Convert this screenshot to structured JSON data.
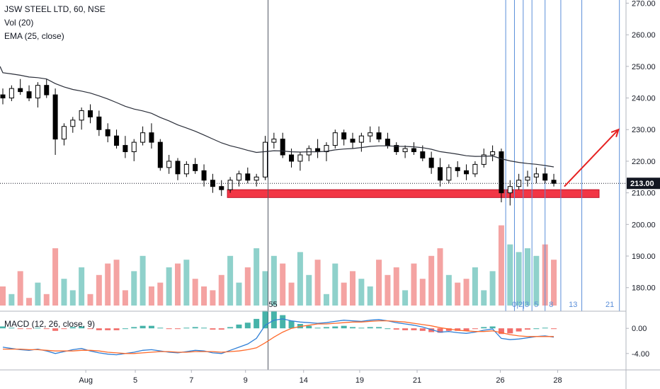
{
  "legend": {
    "title": "JSW STEEL LTD, 60, NSE",
    "vol": "Vol (20)",
    "ema": "EMA (25, close)",
    "macd": "MACD (12, 26, close, 9)"
  },
  "chart_data": {
    "type": "candlestick",
    "price_axis": {
      "range": [
        173,
        271
      ],
      "ticks": [
        "270.00",
        "260.00",
        "250.00",
        "240.00",
        "230.00",
        "220.00",
        "210.00",
        "200.00",
        "190.00",
        "180.00"
      ],
      "tick_values": [
        270,
        260,
        250,
        240,
        230,
        220,
        210,
        200,
        190,
        180
      ],
      "last_price": "213.00",
      "last_price_value": 213
    },
    "macd_axis": {
      "range": [
        -6.5,
        2.5
      ],
      "ticks": [
        "0.00",
        "-4.00"
      ],
      "tick_values": [
        0,
        -4
      ]
    },
    "x_labels": [
      {
        "label": "Aug",
        "pos": 0.13
      },
      {
        "label": "5",
        "pos": 0.205
      },
      {
        "label": "7",
        "pos": 0.29
      },
      {
        "label": "9",
        "pos": 0.372
      },
      {
        "label": "14",
        "pos": 0.46
      },
      {
        "label": "19",
        "pos": 0.545
      },
      {
        "label": "21",
        "pos": 0.632
      },
      {
        "label": "26",
        "pos": 0.758
      },
      {
        "label": "28",
        "pos": 0.845
      }
    ],
    "ema_period": 25,
    "candles": [
      [
        241,
        243,
        238,
        240
      ],
      [
        240,
        244,
        239,
        243
      ],
      [
        243,
        246,
        241,
        242
      ],
      [
        242,
        244,
        239,
        240
      ],
      [
        240,
        245,
        237,
        244
      ],
      [
        244,
        246,
        240,
        241
      ],
      [
        241,
        243,
        222,
        227
      ],
      [
        227,
        232,
        225,
        231
      ],
      [
        231,
        234,
        229,
        233
      ],
      [
        233,
        237,
        230,
        236
      ],
      [
        236,
        238,
        232,
        234
      ],
      [
        234,
        236,
        228,
        230
      ],
      [
        230,
        232,
        226,
        228
      ],
      [
        228,
        230,
        224,
        225
      ],
      [
        225,
        228,
        221,
        223
      ],
      [
        223,
        227,
        220,
        226
      ],
      [
        226,
        231,
        225,
        229
      ],
      [
        229,
        232,
        224,
        226
      ],
      [
        226,
        227,
        217,
        218
      ],
      [
        218,
        222,
        216,
        220
      ],
      [
        220,
        221,
        214,
        216
      ],
      [
        216,
        220,
        215,
        219
      ],
      [
        219,
        221,
        216,
        217
      ],
      [
        217,
        219,
        212,
        214
      ],
      [
        214,
        216,
        210,
        212
      ],
      [
        212,
        214,
        209,
        211
      ],
      [
        211,
        215,
        210,
        214
      ],
      [
        214,
        217,
        212,
        216
      ],
      [
        216,
        218,
        213,
        214
      ],
      [
        214,
        216,
        212,
        215
      ],
      [
        215,
        228,
        214,
        226
      ],
      [
        226,
        229,
        224,
        227
      ],
      [
        227,
        229,
        221,
        222
      ],
      [
        222,
        224,
        218,
        220
      ],
      [
        220,
        223,
        217,
        222
      ],
      [
        222,
        225,
        220,
        224
      ],
      [
        224,
        227,
        221,
        223
      ],
      [
        223,
        226,
        220,
        225
      ],
      [
        225,
        230,
        224,
        229
      ],
      [
        229,
        230,
        225,
        227
      ],
      [
        227,
        229,
        224,
        226
      ],
      [
        226,
        229,
        223,
        228
      ],
      [
        228,
        231,
        226,
        229
      ],
      [
        229,
        231,
        226,
        227
      ],
      [
        227,
        229,
        224,
        225
      ],
      [
        225,
        226,
        222,
        223
      ],
      [
        223,
        225,
        221,
        224
      ],
      [
        224,
        226,
        222,
        223
      ],
      [
        223,
        225,
        220,
        221
      ],
      [
        221,
        223,
        216,
        218
      ],
      [
        218,
        221,
        212,
        214
      ],
      [
        214,
        219,
        213,
        218
      ],
      [
        218,
        220,
        215,
        217
      ],
      [
        217,
        219,
        214,
        216
      ],
      [
        216,
        220,
        215,
        219
      ],
      [
        219,
        224,
        218,
        222
      ],
      [
        222,
        225,
        220,
        223
      ],
      [
        223,
        224,
        207,
        210
      ],
      [
        210,
        214,
        206,
        212
      ],
      [
        212,
        216,
        211,
        214
      ],
      [
        214,
        217,
        212,
        215
      ],
      [
        215,
        218,
        213,
        216
      ],
      [
        216,
        218,
        213,
        214
      ],
      [
        214,
        216,
        212,
        213
      ]
    ],
    "volume": [
      178,
      176,
      182,
      175,
      179,
      176,
      188,
      180,
      177,
      183,
      176,
      181,
      184,
      185,
      177,
      182,
      186,
      178,
      179,
      183,
      184,
      185,
      180,
      178,
      177,
      181,
      186,
      179,
      183,
      188,
      182,
      186,
      184,
      179,
      187,
      181,
      185,
      176,
      184,
      179,
      182,
      180,
      178,
      185,
      181,
      183,
      177,
      184,
      180,
      186,
      188,
      181,
      179,
      180,
      183,
      177,
      182,
      194,
      189,
      187,
      188,
      186,
      189,
      185
    ],
    "macd": [
      -3.0,
      -3.2,
      -3.4,
      -3.5,
      -3.3,
      -3.6,
      -4.0,
      -3.7,
      -3.4,
      -3.2,
      -3.6,
      -3.9,
      -4.1,
      -4.2,
      -4.0,
      -3.8,
      -3.5,
      -3.4,
      -3.6,
      -3.8,
      -3.9,
      -3.7,
      -3.5,
      -3.6,
      -3.9,
      -4.0,
      -3.5,
      -3.0,
      -2.5,
      -1.6,
      0.5,
      1.3,
      1.5,
      1.2,
      1.0,
      0.9,
      0.8,
      0.9,
      1.1,
      1.3,
      1.2,
      1.1,
      1.3,
      1.4,
      1.2,
      0.9,
      0.7,
      0.5,
      0.2,
      -0.2,
      -0.6,
      -0.5,
      -0.7,
      -0.8,
      -0.6,
      -0.3,
      -0.1,
      -1.6,
      -1.8,
      -1.7,
      -1.5,
      -1.3,
      -1.2,
      -1.4
    ],
    "signal": [
      -3.3,
      -3.3,
      -3.3,
      -3.4,
      -3.4,
      -3.5,
      -3.6,
      -3.6,
      -3.6,
      -3.5,
      -3.5,
      -3.6,
      -3.8,
      -3.9,
      -4.0,
      -4.0,
      -3.9,
      -3.8,
      -3.7,
      -3.7,
      -3.8,
      -3.8,
      -3.7,
      -3.7,
      -3.7,
      -3.8,
      -3.7,
      -3.6,
      -3.4,
      -3.1,
      -2.3,
      -1.4,
      -0.6,
      0.0,
      0.3,
      0.5,
      0.7,
      0.7,
      0.8,
      0.9,
      1.0,
      1.0,
      1.1,
      1.2,
      1.2,
      1.1,
      1.0,
      0.8,
      0.6,
      0.4,
      0.1,
      -0.1,
      -0.3,
      -0.4,
      -0.5,
      -0.5,
      -0.4,
      -0.7,
      -1.0,
      -1.2,
      -1.3,
      -1.3,
      -1.3,
      -1.3
    ],
    "support_zone": {
      "low": 208.5,
      "high": 211.0,
      "from_index": 26,
      "to_extend": true
    },
    "vertical_line_index": 30,
    "vertical_line_label": "55",
    "fib_time_indices": [
      57.5,
      58.5,
      59.5,
      60.5,
      62.0
    ],
    "fib_time_labels": [
      {
        "label": "0|2|3",
        "index": 59.2
      },
      {
        "label": "5",
        "index": 61.0
      },
      {
        "label": "8",
        "index": 62.7
      },
      {
        "label": "13",
        "index": 65.2
      },
      {
        "label": "21",
        "index": 69.4
      }
    ],
    "future_fib_lines": [
      63.8,
      66.2,
      70.5
    ],
    "arrow": {
      "from": [
        64.2,
        212
      ],
      "to": [
        70.4,
        230
      ]
    },
    "colors": {
      "up": "#26a69a",
      "down": "#ef5350",
      "candle_body": "#000000",
      "candle_hollow": "#ffffff",
      "vol_up": "#8fd1cb",
      "vol_down": "#f4a3a2",
      "ema": "#2a2e39",
      "macd_line": "#2f7fd6",
      "signal_line": "#ff6a2b",
      "hist_up": "#26a69a",
      "hist_down": "#ef5350",
      "support": "#f23645",
      "arrow": "#e62222",
      "fib": "#5b8fd9",
      "price_tag": "#131722"
    }
  }
}
